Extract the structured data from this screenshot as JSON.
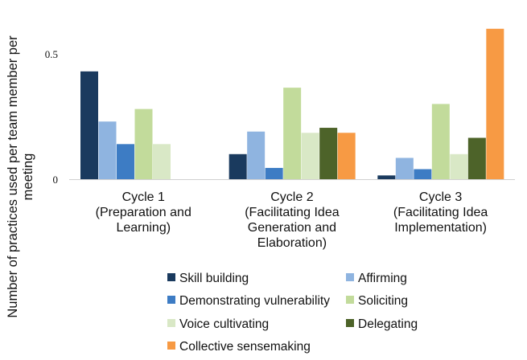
{
  "chart_data": {
    "type": "bar",
    "title": "",
    "xlabel": "",
    "ylabel": "Number of practices used per team member per meeting",
    "ylim": [
      0,
      0.6
    ],
    "yticks": [
      {
        "value": 0,
        "label": "0"
      },
      {
        "value": 0.5,
        "label": "0.5"
      }
    ],
    "grid": false,
    "legend_position": "bottom",
    "categories": [
      {
        "lines": [
          "Cycle 1",
          "(Preparation and",
          "Learning)"
        ]
      },
      {
        "lines": [
          "Cycle 2",
          "(Facilitating Idea",
          "Generation and",
          "Elaboration)"
        ]
      },
      {
        "lines": [
          "Cycle 3",
          "(Facilitating Idea",
          "Implementation)"
        ]
      }
    ],
    "series": [
      {
        "name": "Skill building",
        "color": "#1a3a5e",
        "values": [
          0.43,
          0.1,
          0.015
        ]
      },
      {
        "name": "Affirming",
        "color": "#8fb4e0",
        "values": [
          0.23,
          0.19,
          0.085
        ]
      },
      {
        "name": "Demonstrating vulnerability",
        "color": "#3d7cc4",
        "values": [
          0.14,
          0.045,
          0.04
        ]
      },
      {
        "name": "Soliciting",
        "color": "#c2db9b",
        "values": [
          0.28,
          0.365,
          0.3
        ]
      },
      {
        "name": "Voice cultivating",
        "color": "#d9e8c6",
        "values": [
          0.14,
          0.185,
          0.1
        ]
      },
      {
        "name": "Delegating",
        "color": "#4d6329",
        "values": [
          null,
          0.205,
          0.165
        ]
      },
      {
        "name": "Collective sensemaking",
        "color": "#f79a44",
        "values": [
          null,
          0.185,
          0.6
        ]
      }
    ]
  }
}
